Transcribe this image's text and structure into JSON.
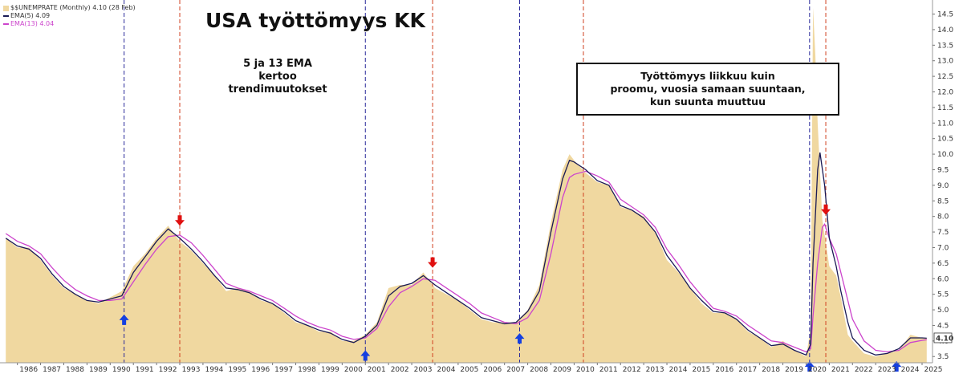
{
  "chart_data": {
    "type": "area",
    "title": "USA työttömyys  KK",
    "header_label": "$$UNEMPRATE (Monthly) 4.10 (28 Feb)",
    "legend": [
      {
        "name": "EMA(5) 4.09",
        "color": "#1a1a55"
      },
      {
        "name": "EMA(13) 4.04",
        "color": "#cc44cc"
      }
    ],
    "last_value_label": "4.10",
    "area_color": "#f0d8a0",
    "x_ticks": [
      "1986",
      "1987",
      "1988",
      "1989",
      "1990",
      "1991",
      "1992",
      "1993",
      "1994",
      "1995",
      "1996",
      "1997",
      "1998",
      "1999",
      "2000",
      "2001",
      "2002",
      "2003",
      "2004",
      "2005",
      "2006",
      "2007",
      "2008",
      "2009",
      "2010",
      "2011",
      "2012",
      "2013",
      "2014",
      "2015",
      "2016",
      "2017",
      "2018",
      "2019",
      "2020",
      "2021",
      "2022",
      "2023",
      "2024",
      "2025"
    ],
    "y_ticks": [
      "3.5",
      "4.0",
      "4.5",
      "5.0",
      "5.5",
      "6.0",
      "6.5",
      "7.0",
      "7.5",
      "8.0",
      "8.5",
      "9.0",
      "9.5",
      "10.0",
      "10.5",
      "11.0",
      "11.5",
      "12.0",
      "12.5",
      "13.0",
      "13.5",
      "14.0",
      "14.5"
    ],
    "y_range": [
      3.3,
      14.9
    ],
    "x_range": [
      1985.25,
      2025.45
    ],
    "unemployment": [
      [
        1985.5,
        7.3
      ],
      [
        1986.0,
        7.0
      ],
      [
        1986.5,
        7.0
      ],
      [
        1987.0,
        6.6
      ],
      [
        1987.5,
        6.1
      ],
      [
        1988.0,
        5.7
      ],
      [
        1988.5,
        5.5
      ],
      [
        1989.0,
        5.3
      ],
      [
        1989.5,
        5.2
      ],
      [
        1990.0,
        5.4
      ],
      [
        1990.5,
        5.6
      ],
      [
        1991.0,
        6.4
      ],
      [
        1991.5,
        6.8
      ],
      [
        1992.0,
        7.3
      ],
      [
        1992.5,
        7.7
      ],
      [
        1993.0,
        7.2
      ],
      [
        1993.5,
        6.9
      ],
      [
        1994.0,
        6.5
      ],
      [
        1994.5,
        6.1
      ],
      [
        1995.0,
        5.6
      ],
      [
        1995.5,
        5.7
      ],
      [
        1996.0,
        5.6
      ],
      [
        1996.5,
        5.3
      ],
      [
        1997.0,
        5.2
      ],
      [
        1997.5,
        4.9
      ],
      [
        1998.0,
        4.6
      ],
      [
        1998.5,
        4.5
      ],
      [
        1999.0,
        4.3
      ],
      [
        1999.5,
        4.3
      ],
      [
        2000.0,
        4.0
      ],
      [
        2000.5,
        4.0
      ],
      [
        2001.0,
        4.2
      ],
      [
        2001.5,
        4.6
      ],
      [
        2002.0,
        5.7
      ],
      [
        2002.5,
        5.8
      ],
      [
        2003.0,
        5.8
      ],
      [
        2003.5,
        6.2
      ],
      [
        2004.0,
        5.7
      ],
      [
        2004.5,
        5.5
      ],
      [
        2005.0,
        5.3
      ],
      [
        2005.5,
        5.0
      ],
      [
        2006.0,
        4.7
      ],
      [
        2006.5,
        4.6
      ],
      [
        2007.0,
        4.6
      ],
      [
        2007.5,
        4.6
      ],
      [
        2008.0,
        5.0
      ],
      [
        2008.5,
        5.8
      ],
      [
        2009.0,
        7.8
      ],
      [
        2009.5,
        9.5
      ],
      [
        2009.8,
        10.0
      ],
      [
        2010.0,
        9.8
      ],
      [
        2010.5,
        9.4
      ],
      [
        2011.0,
        9.1
      ],
      [
        2011.5,
        9.0
      ],
      [
        2012.0,
        8.3
      ],
      [
        2012.5,
        8.2
      ],
      [
        2013.0,
        8.0
      ],
      [
        2013.5,
        7.5
      ],
      [
        2014.0,
        6.6
      ],
      [
        2014.5,
        6.2
      ],
      [
        2015.0,
        5.7
      ],
      [
        2015.5,
        5.2
      ],
      [
        2016.0,
        4.9
      ],
      [
        2016.5,
        4.9
      ],
      [
        2017.0,
        4.7
      ],
      [
        2017.5,
        4.3
      ],
      [
        2018.0,
        4.1
      ],
      [
        2018.5,
        3.8
      ],
      [
        2019.0,
        4.0
      ],
      [
        2019.5,
        3.7
      ],
      [
        2020.0,
        3.5
      ],
      [
        2020.2,
        4.4
      ],
      [
        2020.3,
        14.7
      ],
      [
        2020.4,
        13.2
      ],
      [
        2020.5,
        11.0
      ],
      [
        2020.7,
        7.9
      ],
      [
        2021.0,
        6.4
      ],
      [
        2021.3,
        6.1
      ],
      [
        2021.5,
        5.4
      ],
      [
        2021.8,
        4.2
      ],
      [
        2022.0,
        4.0
      ],
      [
        2022.5,
        3.6
      ],
      [
        2023.0,
        3.5
      ],
      [
        2023.5,
        3.6
      ],
      [
        2024.0,
        3.7
      ],
      [
        2024.5,
        4.2
      ],
      [
        2025.0,
        4.1
      ],
      [
        2025.2,
        4.1
      ]
    ],
    "ema5": [
      [
        1985.5,
        7.3
      ],
      [
        1986.0,
        7.05
      ],
      [
        1986.5,
        6.95
      ],
      [
        1987.0,
        6.65
      ],
      [
        1987.5,
        6.15
      ],
      [
        1988.0,
        5.75
      ],
      [
        1988.5,
        5.5
      ],
      [
        1989.0,
        5.3
      ],
      [
        1989.5,
        5.25
      ],
      [
        1990.0,
        5.35
      ],
      [
        1990.5,
        5.45
      ],
      [
        1991.0,
        6.2
      ],
      [
        1991.5,
        6.7
      ],
      [
        1992.0,
        7.2
      ],
      [
        1992.5,
        7.6
      ],
      [
        1993.0,
        7.3
      ],
      [
        1993.5,
        6.95
      ],
      [
        1994.0,
        6.55
      ],
      [
        1994.5,
        6.1
      ],
      [
        1995.0,
        5.7
      ],
      [
        1995.5,
        5.65
      ],
      [
        1996.0,
        5.55
      ],
      [
        1996.5,
        5.35
      ],
      [
        1997.0,
        5.2
      ],
      [
        1997.5,
        4.95
      ],
      [
        1998.0,
        4.65
      ],
      [
        1998.5,
        4.5
      ],
      [
        1999.0,
        4.35
      ],
      [
        1999.5,
        4.25
      ],
      [
        2000.0,
        4.05
      ],
      [
        2000.5,
        3.95
      ],
      [
        2001.0,
        4.15
      ],
      [
        2001.5,
        4.5
      ],
      [
        2002.0,
        5.45
      ],
      [
        2002.5,
        5.75
      ],
      [
        2003.0,
        5.85
      ],
      [
        2003.5,
        6.1
      ],
      [
        2004.0,
        5.8
      ],
      [
        2004.5,
        5.55
      ],
      [
        2005.0,
        5.3
      ],
      [
        2005.5,
        5.05
      ],
      [
        2006.0,
        4.75
      ],
      [
        2006.5,
        4.65
      ],
      [
        2007.0,
        4.55
      ],
      [
        2007.5,
        4.6
      ],
      [
        2008.0,
        4.95
      ],
      [
        2008.5,
        5.6
      ],
      [
        2009.0,
        7.5
      ],
      [
        2009.5,
        9.2
      ],
      [
        2009.8,
        9.8
      ],
      [
        2010.0,
        9.75
      ],
      [
        2010.5,
        9.5
      ],
      [
        2011.0,
        9.15
      ],
      [
        2011.5,
        9.0
      ],
      [
        2012.0,
        8.35
      ],
      [
        2012.5,
        8.2
      ],
      [
        2013.0,
        7.95
      ],
      [
        2013.5,
        7.5
      ],
      [
        2014.0,
        6.75
      ],
      [
        2014.5,
        6.25
      ],
      [
        2015.0,
        5.7
      ],
      [
        2015.5,
        5.3
      ],
      [
        2016.0,
        4.95
      ],
      [
        2016.5,
        4.9
      ],
      [
        2017.0,
        4.7
      ],
      [
        2017.5,
        4.35
      ],
      [
        2018.0,
        4.1
      ],
      [
        2018.5,
        3.85
      ],
      [
        2019.0,
        3.9
      ],
      [
        2019.5,
        3.7
      ],
      [
        2020.0,
        3.55
      ],
      [
        2020.2,
        3.9
      ],
      [
        2020.3,
        6.5
      ],
      [
        2020.5,
        9.5
      ],
      [
        2020.6,
        10.05
      ],
      [
        2020.8,
        9.0
      ],
      [
        2021.0,
        7.3
      ],
      [
        2021.3,
        6.4
      ],
      [
        2021.5,
        5.6
      ],
      [
        2021.8,
        4.6
      ],
      [
        2022.0,
        4.1
      ],
      [
        2022.5,
        3.7
      ],
      [
        2023.0,
        3.55
      ],
      [
        2023.5,
        3.6
      ],
      [
        2024.0,
        3.75
      ],
      [
        2024.5,
        4.1
      ],
      [
        2025.0,
        4.1
      ],
      [
        2025.2,
        4.09
      ]
    ],
    "ema13": [
      [
        1985.5,
        7.45
      ],
      [
        1986.0,
        7.2
      ],
      [
        1986.5,
        7.05
      ],
      [
        1987.0,
        6.8
      ],
      [
        1987.5,
        6.35
      ],
      [
        1988.0,
        5.95
      ],
      [
        1988.5,
        5.65
      ],
      [
        1989.0,
        5.45
      ],
      [
        1989.5,
        5.3
      ],
      [
        1990.0,
        5.3
      ],
      [
        1990.5,
        5.35
      ],
      [
        1991.0,
        5.9
      ],
      [
        1991.5,
        6.45
      ],
      [
        1992.0,
        6.95
      ],
      [
        1992.5,
        7.35
      ],
      [
        1993.0,
        7.4
      ],
      [
        1993.5,
        7.15
      ],
      [
        1994.0,
        6.75
      ],
      [
        1994.5,
        6.3
      ],
      [
        1995.0,
        5.85
      ],
      [
        1995.5,
        5.7
      ],
      [
        1996.0,
        5.6
      ],
      [
        1996.5,
        5.45
      ],
      [
        1997.0,
        5.3
      ],
      [
        1997.5,
        5.05
      ],
      [
        1998.0,
        4.8
      ],
      [
        1998.5,
        4.6
      ],
      [
        1999.0,
        4.45
      ],
      [
        1999.5,
        4.35
      ],
      [
        2000.0,
        4.15
      ],
      [
        2000.5,
        4.05
      ],
      [
        2001.0,
        4.1
      ],
      [
        2001.5,
        4.4
      ],
      [
        2002.0,
        5.1
      ],
      [
        2002.5,
        5.55
      ],
      [
        2003.0,
        5.75
      ],
      [
        2003.5,
        6.0
      ],
      [
        2004.0,
        5.95
      ],
      [
        2004.5,
        5.7
      ],
      [
        2005.0,
        5.45
      ],
      [
        2005.5,
        5.2
      ],
      [
        2006.0,
        4.9
      ],
      [
        2006.5,
        4.75
      ],
      [
        2007.0,
        4.6
      ],
      [
        2007.5,
        4.55
      ],
      [
        2008.0,
        4.75
      ],
      [
        2008.5,
        5.3
      ],
      [
        2009.0,
        6.8
      ],
      [
        2009.5,
        8.6
      ],
      [
        2009.8,
        9.25
      ],
      [
        2010.0,
        9.35
      ],
      [
        2010.5,
        9.45
      ],
      [
        2011.0,
        9.3
      ],
      [
        2011.5,
        9.1
      ],
      [
        2012.0,
        8.55
      ],
      [
        2012.5,
        8.3
      ],
      [
        2013.0,
        8.05
      ],
      [
        2013.5,
        7.65
      ],
      [
        2014.0,
        6.95
      ],
      [
        2014.5,
        6.45
      ],
      [
        2015.0,
        5.9
      ],
      [
        2015.5,
        5.45
      ],
      [
        2016.0,
        5.05
      ],
      [
        2016.5,
        4.95
      ],
      [
        2017.0,
        4.8
      ],
      [
        2017.5,
        4.5
      ],
      [
        2018.0,
        4.25
      ],
      [
        2018.5,
        4.0
      ],
      [
        2019.0,
        3.95
      ],
      [
        2019.5,
        3.8
      ],
      [
        2020.0,
        3.65
      ],
      [
        2020.2,
        3.75
      ],
      [
        2020.3,
        4.8
      ],
      [
        2020.5,
        6.5
      ],
      [
        2020.7,
        7.65
      ],
      [
        2020.8,
        7.75
      ],
      [
        2021.0,
        7.3
      ],
      [
        2021.3,
        6.8
      ],
      [
        2021.5,
        6.2
      ],
      [
        2021.8,
        5.3
      ],
      [
        2022.0,
        4.7
      ],
      [
        2022.5,
        4.0
      ],
      [
        2023.0,
        3.7
      ],
      [
        2023.5,
        3.65
      ],
      [
        2024.0,
        3.7
      ],
      [
        2024.5,
        3.95
      ],
      [
        2025.0,
        4.02
      ],
      [
        2025.2,
        4.04
      ]
    ],
    "vertical_markers": [
      {
        "x": 1990.6,
        "color": "#2a2a9a"
      },
      {
        "x": 1993.0,
        "color": "#d04020"
      },
      {
        "x": 2001.0,
        "color": "#2a2a9a"
      },
      {
        "x": 2003.9,
        "color": "#d04020"
      },
      {
        "x": 2007.65,
        "color": "#2a2a9a"
      },
      {
        "x": 2010.4,
        "color": "#d04020"
      },
      {
        "x": 2020.15,
        "color": "#2a2a9a"
      },
      {
        "x": 2020.85,
        "color": "#d04020"
      }
    ],
    "up_arrows": [
      {
        "x": 1990.6,
        "y": 4.85
      },
      {
        "x": 2001.0,
        "y": 3.7
      },
      {
        "x": 2007.65,
        "y": 4.25
      },
      {
        "x": 2020.15,
        "y": 3.35
      },
      {
        "x": 2023.9,
        "y": 3.35
      }
    ],
    "down_arrows": [
      {
        "x": 1993.0,
        "y": 7.7
      },
      {
        "x": 2003.9,
        "y": 6.35
      },
      {
        "x": 2020.85,
        "y": 8.05
      }
    ],
    "annotations": {
      "ema_note": [
        "5 ja 13 EMA",
        "kertoo",
        "trendimuutokset"
      ],
      "box_note": [
        "Työttömyys liikkuu kuin",
        "proomu, vuosia samaan suuntaan,",
        "kun suunta muuttuu"
      ]
    },
    "grid": false,
    "legend_position": "top-left"
  },
  "colors": {
    "ema5": "#1a1a55",
    "ema13": "#cc44cc",
    "area": "#f0d8a0",
    "up_arrow": "#1540e0",
    "down_arrow": "#e01010"
  }
}
